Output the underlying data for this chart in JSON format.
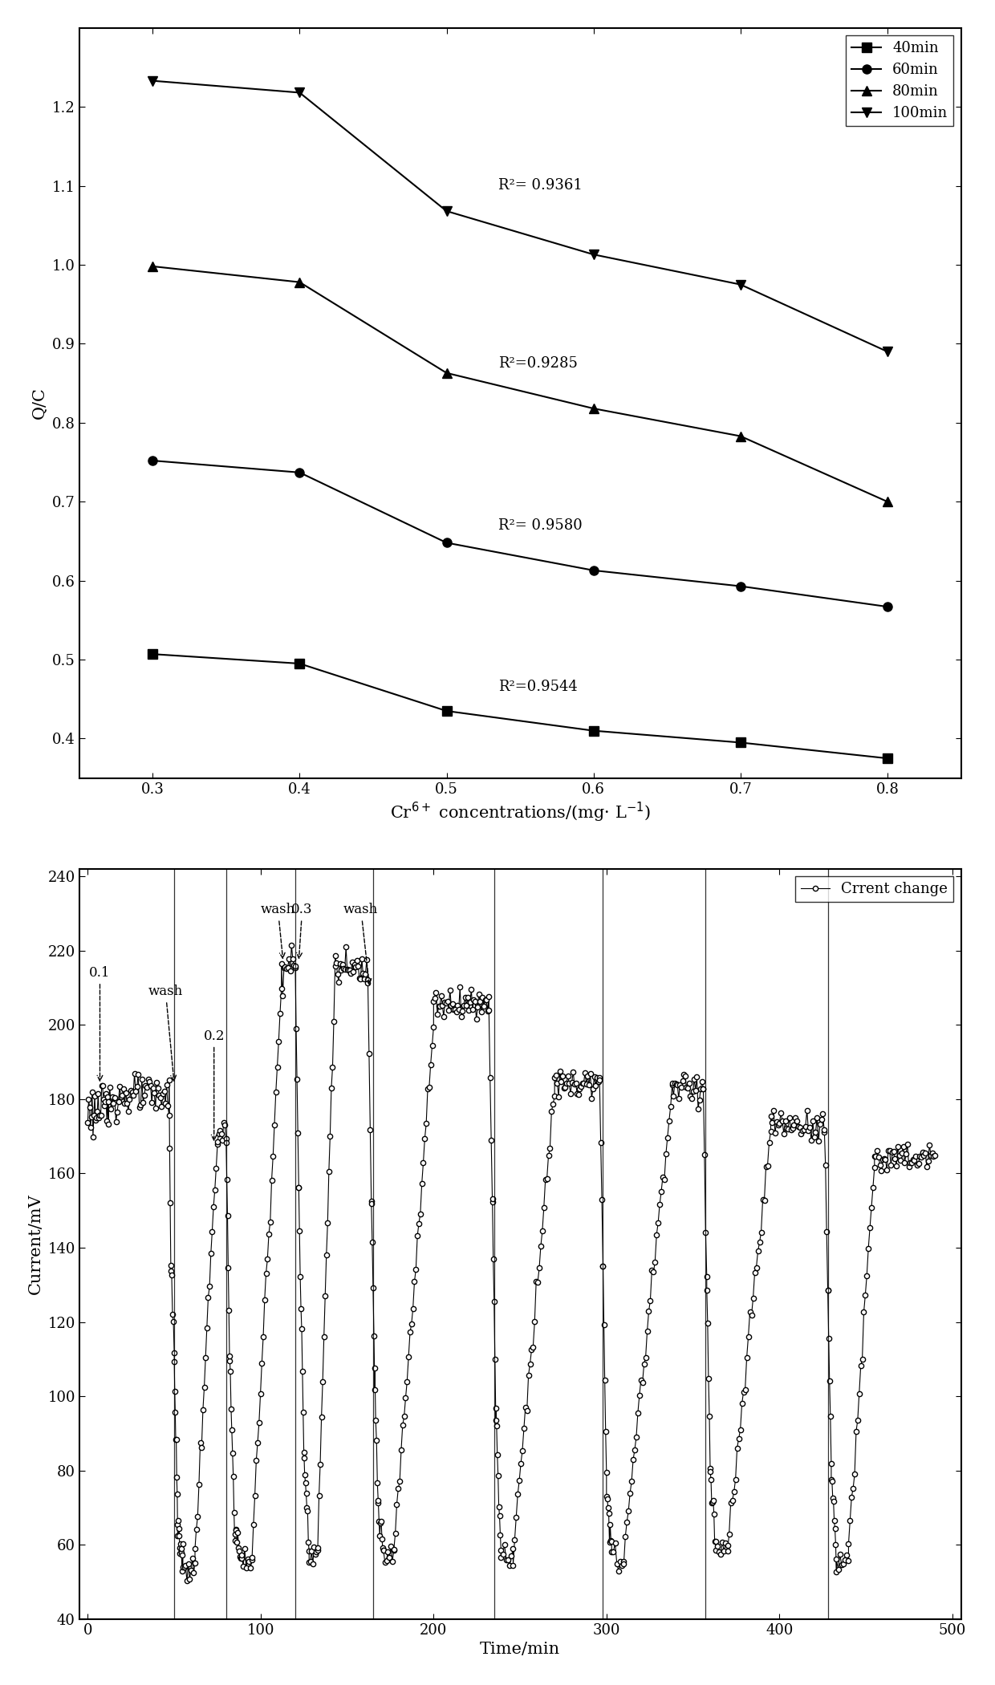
{
  "top_chart": {
    "xlabel": "Cr$^{6+}$ concentrations/(mg· L$^{-1}$)",
    "ylabel": "Q/C",
    "xlim": [
      0.25,
      0.85
    ],
    "ylim": [
      0.35,
      1.3
    ],
    "xticks": [
      0.3,
      0.4,
      0.5,
      0.6,
      0.7,
      0.8
    ],
    "yticks": [
      0.4,
      0.5,
      0.6,
      0.7,
      0.8,
      0.9,
      1.0,
      1.1,
      1.2
    ],
    "series": [
      {
        "label": "40min",
        "marker": "s",
        "x": [
          0.3,
          0.4,
          0.5,
          0.6,
          0.7,
          0.8
        ],
        "y": [
          0.507,
          0.495,
          0.435,
          0.41,
          0.395,
          0.375
        ],
        "r2": "R²=0.9544",
        "r2_x": 0.535,
        "r2_y": 0.46
      },
      {
        "label": "60min",
        "marker": "o",
        "x": [
          0.3,
          0.4,
          0.5,
          0.6,
          0.7,
          0.8
        ],
        "y": [
          0.752,
          0.737,
          0.648,
          0.613,
          0.593,
          0.567
        ],
        "r2": "R²= 0.9580",
        "r2_x": 0.535,
        "r2_y": 0.665
      },
      {
        "label": "80min",
        "marker": "^",
        "x": [
          0.3,
          0.4,
          0.5,
          0.6,
          0.7,
          0.8
        ],
        "y": [
          0.998,
          0.978,
          0.863,
          0.818,
          0.783,
          0.7
        ],
        "r2": "R²=0.9285",
        "r2_x": 0.535,
        "r2_y": 0.87
      },
      {
        "label": "100min",
        "marker": "v",
        "x": [
          0.3,
          0.4,
          0.5,
          0.6,
          0.7,
          0.8
        ],
        "y": [
          1.233,
          1.218,
          1.068,
          1.013,
          0.975,
          0.89
        ],
        "r2": "R²= 0.9361",
        "r2_x": 0.535,
        "r2_y": 1.095
      }
    ]
  },
  "bottom_chart": {
    "xlabel": "Time/min",
    "ylabel": "Current/mV",
    "xlim": [
      -5,
      505
    ],
    "ylim": [
      40,
      242
    ],
    "xticks": [
      0,
      100,
      200,
      300,
      400,
      500
    ],
    "yticks": [
      40,
      60,
      80,
      100,
      120,
      140,
      160,
      180,
      200,
      220,
      240
    ],
    "legend_label": "Crrent change"
  }
}
